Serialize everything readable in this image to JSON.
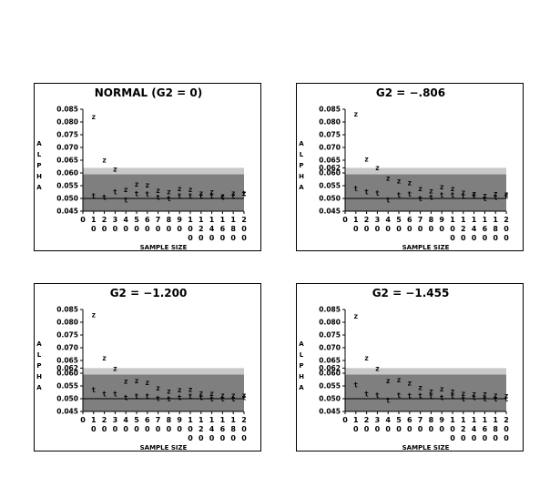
{
  "page": {
    "ylabel_letters": [
      "A",
      "L",
      "P",
      "H",
      "A"
    ]
  },
  "chart_data": [
    {
      "type": "scatter",
      "title": "NORMAL (G2 = 0)",
      "xlabel": "SAMPLE SIZE",
      "ylabel": "ALPHA",
      "ylim": [
        0.045,
        0.085
      ],
      "yticks": [
        "0.085",
        "0.080",
        "0.075",
        "0.070",
        "0.065",
        "0.060",
        "0.055",
        "0.050",
        "0.045"
      ],
      "xtick_labels": [
        [
          "0"
        ],
        [
          "1",
          "0"
        ],
        [
          "2",
          "0"
        ],
        [
          "3",
          "0"
        ],
        [
          "4",
          "0"
        ],
        [
          "5",
          "0"
        ],
        [
          "6",
          "0"
        ],
        [
          "7",
          "0"
        ],
        [
          "8",
          "0"
        ],
        [
          "9",
          "0"
        ],
        [
          "1",
          "0",
          "0"
        ],
        [
          "1",
          "2",
          "0"
        ],
        [
          "1",
          "4",
          "0"
        ],
        [
          "1",
          "6",
          "0"
        ],
        [
          "1",
          "8",
          "0"
        ],
        [
          "2",
          "0",
          "0"
        ]
      ],
      "x": [
        10,
        20,
        30,
        40,
        50,
        60,
        70,
        80,
        90,
        100,
        120,
        140,
        160,
        180,
        200
      ],
      "series": [
        {
          "symbol": "z",
          "values": [
            0.0822,
            0.0652,
            0.0616,
            0.0535,
            0.0558,
            0.0553,
            0.0533,
            0.0526,
            0.054,
            0.0536,
            0.0522,
            0.0526,
            0.0511,
            0.0522,
            0.0522
          ]
        },
        {
          "symbol": "t",
          "values": [
            0.051,
            0.0505,
            0.0526,
            0.0495,
            0.052,
            0.0518,
            0.0505,
            0.05,
            0.051,
            0.051,
            0.051,
            0.051,
            0.0505,
            0.051,
            0.052
          ]
        }
      ],
      "bands": [
        {
          "from": 0.045,
          "to": 0.0595,
          "color": "#7f7f7f"
        },
        {
          "from": 0.0595,
          "to": 0.062,
          "color": "#c8c8c8"
        }
      ],
      "reference_line": 0.05
    },
    {
      "type": "scatter",
      "title": "G2 = −.806",
      "xlabel": "SAMPLE SIZE",
      "ylabel": "ALPHA",
      "ylim": [
        0.045,
        0.085
      ],
      "yticks": [
        "0.085",
        "0.080",
        "0.075",
        "0.070",
        "0.065",
        "0.062",
        "0.060",
        "0.055",
        "0.050",
        "0.045"
      ],
      "xtick_labels": [
        [
          "0"
        ],
        [
          "1",
          "0"
        ],
        [
          "2",
          "0"
        ],
        [
          "3",
          "0"
        ],
        [
          "4",
          "0"
        ],
        [
          "5",
          "0"
        ],
        [
          "6",
          "0"
        ],
        [
          "7",
          "0"
        ],
        [
          "8",
          "0"
        ],
        [
          "9",
          "0"
        ],
        [
          "1",
          "0",
          "0"
        ],
        [
          "1",
          "2",
          "0"
        ],
        [
          "1",
          "4",
          "0"
        ],
        [
          "1",
          "6",
          "0"
        ],
        [
          "1",
          "8",
          "0"
        ],
        [
          "2",
          "0",
          "0"
        ]
      ],
      "x": [
        10,
        20,
        30,
        40,
        50,
        60,
        70,
        80,
        90,
        100,
        120,
        140,
        160,
        180,
        200
      ],
      "series": [
        {
          "symbol": "z",
          "values": [
            0.0832,
            0.0656,
            0.0622,
            0.058,
            0.057,
            0.0562,
            0.054,
            0.053,
            0.0546,
            0.054,
            0.0525,
            0.052,
            0.0512,
            0.052,
            0.0518
          ]
        },
        {
          "symbol": "t",
          "values": [
            0.054,
            0.0526,
            0.0522,
            0.0495,
            0.0515,
            0.0518,
            0.05,
            0.0505,
            0.0515,
            0.0515,
            0.051,
            0.051,
            0.05,
            0.0505,
            0.051
          ]
        }
      ],
      "bands": [
        {
          "from": 0.045,
          "to": 0.0595,
          "color": "#7f7f7f"
        },
        {
          "from": 0.0595,
          "to": 0.062,
          "color": "#c8c8c8"
        }
      ],
      "reference_line": 0.05
    },
    {
      "type": "scatter",
      "title": "G2 = −1.200",
      "xlabel": "SAMPLE SIZE",
      "ylabel": "ALPHA",
      "ylim": [
        0.045,
        0.085
      ],
      "yticks": [
        "0.085",
        "0.080",
        "0.075",
        "0.070",
        "0.065",
        "0.062",
        "0.060",
        "0.055",
        "0.050",
        "0.045"
      ],
      "xtick_labels": [
        [
          "0"
        ],
        [
          "1",
          "0"
        ],
        [
          "2",
          "0"
        ],
        [
          "3",
          "0"
        ],
        [
          "4",
          "0"
        ],
        [
          "5",
          "0"
        ],
        [
          "6",
          "0"
        ],
        [
          "7",
          "0"
        ],
        [
          "8",
          "0"
        ],
        [
          "9",
          "0"
        ],
        [
          "1",
          "0",
          "0"
        ],
        [
          "1",
          "2",
          "0"
        ],
        [
          "1",
          "4",
          "0"
        ],
        [
          "1",
          "6",
          "0"
        ],
        [
          "1",
          "8",
          "0"
        ],
        [
          "2",
          "0",
          "0"
        ]
      ],
      "x": [
        10,
        20,
        30,
        40,
        50,
        60,
        70,
        80,
        90,
        100,
        120,
        140,
        160,
        180,
        200
      ],
      "series": [
        {
          "symbol": "z",
          "values": [
            0.083,
            0.066,
            0.062,
            0.057,
            0.0572,
            0.0565,
            0.0542,
            0.053,
            0.0535,
            0.0538,
            0.0524,
            0.0522,
            0.0515,
            0.0515,
            0.0515
          ]
        },
        {
          "symbol": "t",
          "values": [
            0.0535,
            0.052,
            0.052,
            0.0505,
            0.051,
            0.051,
            0.0502,
            0.05,
            0.0505,
            0.051,
            0.0505,
            0.05,
            0.05,
            0.05,
            0.0505
          ]
        }
      ],
      "bands": [
        {
          "from": 0.045,
          "to": 0.0595,
          "color": "#7f7f7f"
        },
        {
          "from": 0.0595,
          "to": 0.062,
          "color": "#c8c8c8"
        }
      ],
      "reference_line": 0.05
    },
    {
      "type": "scatter",
      "title": "G2 = −1.455",
      "xlabel": "SAMPLE SIZE",
      "ylabel": "ALPHA",
      "ylim": [
        0.045,
        0.085
      ],
      "yticks": [
        "0.085",
        "0.080",
        "0.075",
        "0.070",
        "0.065",
        "0.062",
        "0.060",
        "0.055",
        "0.050",
        "0.045"
      ],
      "xtick_labels": [
        [
          "0"
        ],
        [
          "1",
          "0"
        ],
        [
          "2",
          "0"
        ],
        [
          "3",
          "0"
        ],
        [
          "4",
          "0"
        ],
        [
          "5",
          "0"
        ],
        [
          "6",
          "0"
        ],
        [
          "7",
          "0"
        ],
        [
          "8",
          "0"
        ],
        [
          "9",
          "0"
        ],
        [
          "1",
          "0",
          "0"
        ],
        [
          "1",
          "2",
          "0"
        ],
        [
          "1",
          "4",
          "0"
        ],
        [
          "1",
          "6",
          "0"
        ],
        [
          "1",
          "8",
          "0"
        ],
        [
          "2",
          "0",
          "0"
        ]
      ],
      "x": [
        10,
        20,
        30,
        40,
        50,
        60,
        70,
        80,
        90,
        100,
        120,
        140,
        160,
        180,
        200
      ],
      "series": [
        {
          "symbol": "z",
          "values": [
            0.0825,
            0.066,
            0.062,
            0.0572,
            0.0575,
            0.0563,
            0.0545,
            0.053,
            0.054,
            0.053,
            0.0522,
            0.052,
            0.052,
            0.0515,
            0.0512
          ]
        },
        {
          "symbol": "t",
          "values": [
            0.0555,
            0.052,
            0.0515,
            0.0495,
            0.0515,
            0.0512,
            0.0512,
            0.051,
            0.0505,
            0.051,
            0.05,
            0.0505,
            0.05,
            0.05,
            0.05
          ]
        }
      ],
      "bands": [
        {
          "from": 0.045,
          "to": 0.0595,
          "color": "#7f7f7f"
        },
        {
          "from": 0.0595,
          "to": 0.062,
          "color": "#c8c8c8"
        }
      ],
      "reference_line": 0.05
    }
  ]
}
